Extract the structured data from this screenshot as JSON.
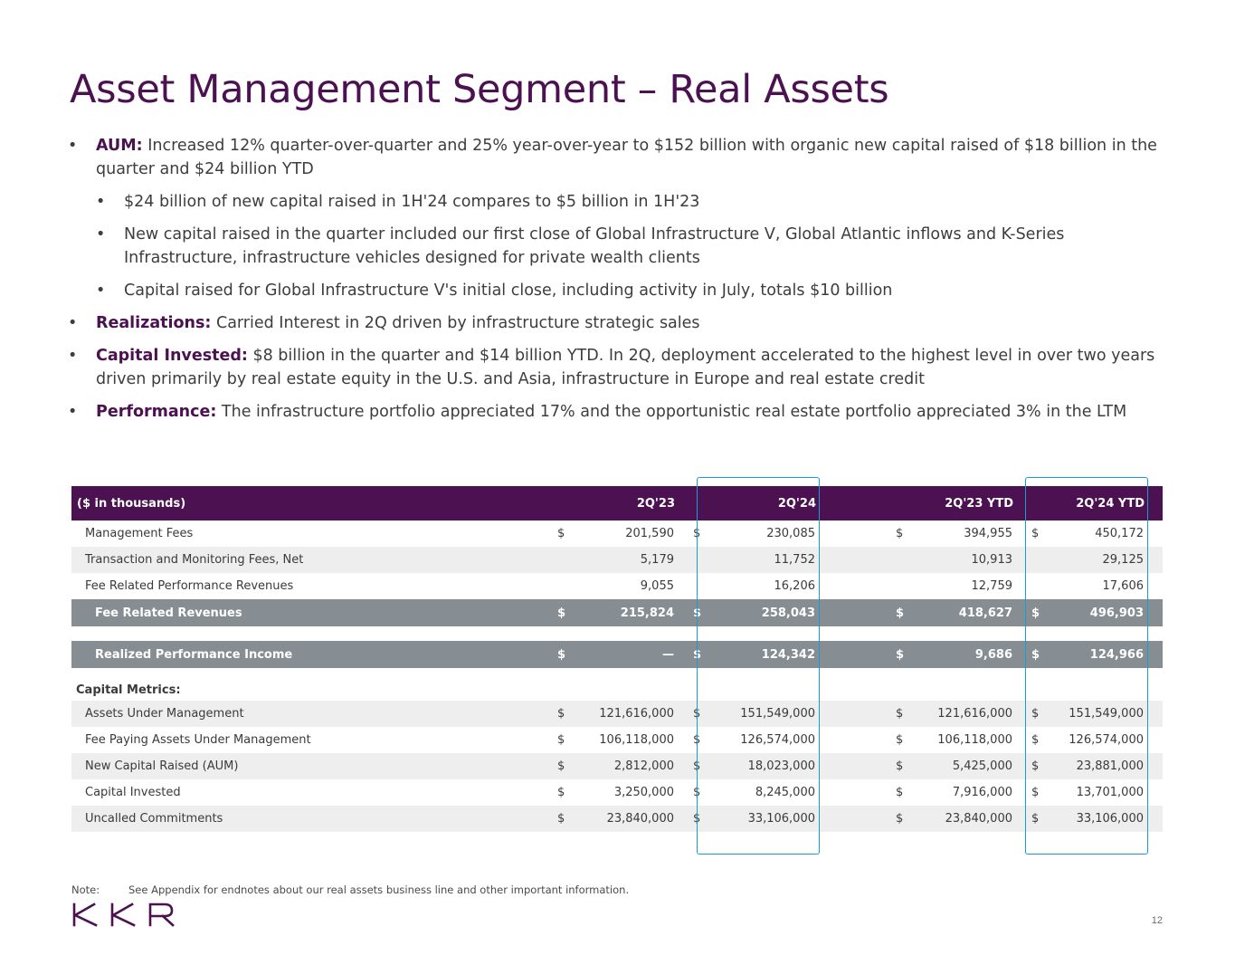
{
  "title": "Asset Management Segment – Real Assets",
  "bullets": [
    {
      "lead": "AUM:",
      "text": " Increased 12% quarter-over-quarter and 25% year-over-year to $152 billion with organic new capital raised of $18 billion in the quarter and $24 billion YTD"
    },
    {
      "text": "$24 billion of new capital raised in 1H'24 compares to $5 billion in 1H'23"
    },
    {
      "text": "New capital raised in the quarter included our first close of Global Infrastructure V, Global Atlantic inflows and K-Series Infrastructure, infrastructure vehicles designed for private wealth clients"
    },
    {
      "text": "Capital raised for Global Infrastructure V's initial close, including activity in July, totals $10 billion"
    },
    {
      "lead": "Realizations:",
      "text": " Carried Interest in 2Q driven by infrastructure strategic sales"
    },
    {
      "lead": "Capital Invested:",
      "text": " $8 billion in the quarter and $14 billion YTD. In 2Q, deployment accelerated to the highest level in over two years driven primarily by real estate equity in the U.S. and Asia, infrastructure in Europe and real estate credit"
    },
    {
      "lead": "Performance:",
      "text": " The infrastructure portfolio appreciated 17% and the opportunistic real estate portfolio appreciated 3% in the LTM"
    }
  ],
  "bullet_symbol": "•",
  "table": {
    "header_label": "($ in thousands)",
    "columns": [
      "2Q'23",
      "2Q'24",
      "2Q'23 YTD",
      "2Q'24 YTD"
    ],
    "rows": {
      "mgmt": {
        "label": "Management Fees",
        "values": [
          "201,590",
          "230,085",
          "394,955",
          "450,172"
        ]
      },
      "tmf": {
        "label": "Transaction and Monitoring Fees, Net",
        "values": [
          "5,179",
          "11,752",
          "10,913",
          "29,125"
        ]
      },
      "frpr": {
        "label": "Fee Related Performance Revenues",
        "values": [
          "9,055",
          "16,206",
          "12,759",
          "17,606"
        ]
      },
      "frr": {
        "label": "Fee Related Revenues",
        "values": [
          "215,824",
          "258,043",
          "418,627",
          "496,903"
        ]
      },
      "rpi": {
        "label": "Realized Performance Income",
        "values": [
          "—",
          "124,342",
          "9,686",
          "124,966"
        ]
      },
      "section": {
        "label": "Capital Metrics:"
      },
      "aum": {
        "label": "Assets Under Management",
        "values": [
          "121,616,000",
          "151,549,000",
          "121,616,000",
          "151,549,000"
        ]
      },
      "fpaum": {
        "label": "Fee Paying Assets Under Management",
        "values": [
          "106,118,000",
          "126,574,000",
          "106,118,000",
          "126,574,000"
        ]
      },
      "ncr": {
        "label": "New Capital Raised (AUM)",
        "values": [
          "2,812,000",
          "18,023,000",
          "5,425,000",
          "23,881,000"
        ]
      },
      "ci": {
        "label": "Capital Invested",
        "values": [
          "3,250,000",
          "8,245,000",
          "7,916,000",
          "13,701,000"
        ]
      },
      "uc": {
        "label": "Uncalled Commitments",
        "values": [
          "23,840,000",
          "33,106,000",
          "23,840,000",
          "33,106,000"
        ]
      }
    },
    "currency_symbol": "$"
  },
  "highlight_color": "#1b9bd6",
  "brand_color": "#4b1150",
  "note": {
    "label": "Note:",
    "text": "See Appendix for endnotes about our real assets business line and other important information."
  },
  "logo_text": "KKR",
  "page_number": "12"
}
